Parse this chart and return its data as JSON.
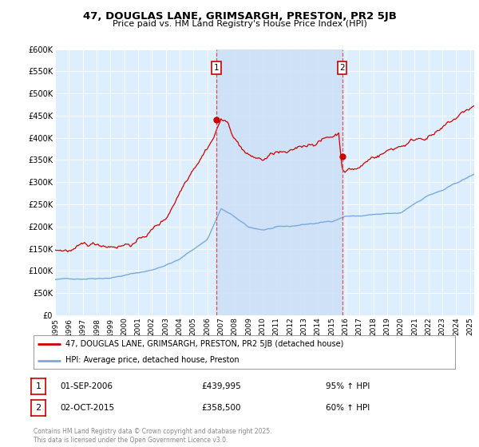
{
  "title": "47, DOUGLAS LANE, GRIMSARGH, PRESTON, PR2 5JB",
  "subtitle": "Price paid vs. HM Land Registry's House Price Index (HPI)",
  "legend_line1": "47, DOUGLAS LANE, GRIMSARGH, PRESTON, PR2 5JB (detached house)",
  "legend_line2": "HPI: Average price, detached house, Preston",
  "sale1_date": "01-SEP-2006",
  "sale1_price": "£439,995",
  "sale1_hpi": "95% ↑ HPI",
  "sale2_date": "02-OCT-2015",
  "sale2_price": "£358,500",
  "sale2_hpi": "60% ↑ HPI",
  "copyright": "Contains HM Land Registry data © Crown copyright and database right 2025.\nThis data is licensed under the Open Government Licence v3.0.",
  "ylim": [
    0,
    600000
  ],
  "yticks": [
    0,
    50000,
    100000,
    150000,
    200000,
    250000,
    300000,
    350000,
    400000,
    450000,
    500000,
    550000,
    600000
  ],
  "ytick_labels": [
    "£0",
    "£50K",
    "£100K",
    "£150K",
    "£200K",
    "£250K",
    "£300K",
    "£350K",
    "£400K",
    "£450K",
    "£500K",
    "£550K",
    "£600K"
  ],
  "red_line_color": "#cc0000",
  "blue_line_color": "#7aaadd",
  "fill_color": "#ccdff5",
  "vline_color": "#dd4444",
  "background_color": "#ffffff",
  "plot_bg_color": "#ddeeff",
  "grid_color": "#ffffff",
  "sale1_x": 2006.67,
  "sale2_x": 2015.75,
  "sale1_y": 439995,
  "sale2_y": 358500,
  "xmin": 1995,
  "xmax": 2025.3
}
